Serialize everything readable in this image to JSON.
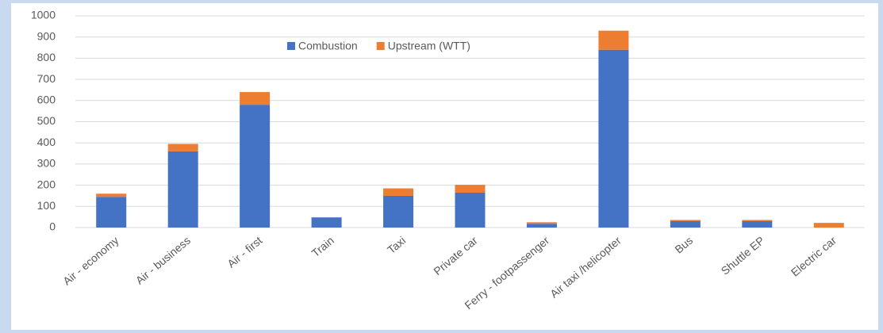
{
  "chart_data": {
    "type": "stacked_bar",
    "categories": [
      "Air - economy",
      "Air - business",
      "Air - first",
      "Train",
      "Taxi",
      "Private car",
      "Ferry - footpassenger",
      "Air taxi /helicopter",
      "Bus",
      "Shuttle EP",
      "Electric car"
    ],
    "series": [
      {
        "name": "Combustion",
        "color": "#4472c4",
        "values": [
          145,
          360,
          580,
          48,
          150,
          165,
          18,
          840,
          30,
          30,
          0
        ]
      },
      {
        "name": "Upstream (WTT)",
        "color": "#ed7d31",
        "values": [
          15,
          35,
          60,
          0,
          35,
          37,
          7,
          90,
          6,
          6,
          22
        ]
      }
    ],
    "ylim": [
      0,
      1000
    ],
    "yticks": [
      0,
      100,
      200,
      300,
      400,
      500,
      600,
      700,
      800,
      900,
      1000
    ],
    "grid": true,
    "legend": "top"
  }
}
